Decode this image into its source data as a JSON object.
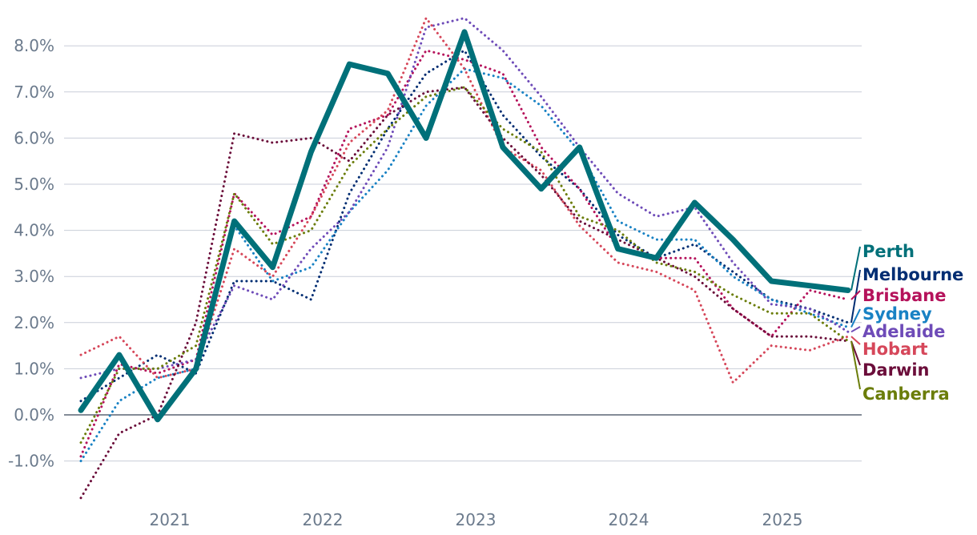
{
  "chart_data": {
    "type": "line",
    "title": "",
    "xlabel": "",
    "ylabel": "",
    "ylim": [
      -1.8,
      8.6
    ],
    "y_ticks": [
      -1,
      0,
      1,
      2,
      3,
      4,
      5,
      6,
      7,
      8
    ],
    "y_tick_labels": [
      "-1.0%",
      "0.0%",
      "1.0%",
      "2.0%",
      "3.0%",
      "4.0%",
      "5.0%",
      "6.0%",
      "7.0%",
      "8.0%"
    ],
    "x_ticks": [
      "2021",
      "2022",
      "2023",
      "2024",
      "2025"
    ],
    "x": [
      "Jun 2020",
      "Sep 2020",
      "Dec 2020",
      "Mar 2021",
      "Jun 2021",
      "Sep 2021",
      "Dec 2021",
      "Mar 2022",
      "Jun 2022",
      "Sep 2022",
      "Dec 2022",
      "Mar 2023",
      "Jun 2023",
      "Sep 2023",
      "Dec 2023",
      "Mar 2024",
      "Jun 2024",
      "Sep 2024",
      "Dec 2024",
      "Mar 2025",
      "Jun 2025"
    ],
    "grid": true,
    "legend": "right, labels at line ends",
    "series": [
      {
        "name": "Perth",
        "color": "#007079",
        "style": "solid",
        "values": [
          0.1,
          1.3,
          -0.1,
          1.0,
          4.2,
          3.2,
          5.7,
          7.6,
          7.4,
          6.0,
          8.3,
          5.8,
          4.9,
          5.8,
          3.6,
          3.4,
          4.6,
          3.8,
          2.9,
          2.8,
          2.7
        ]
      },
      {
        "name": "Melbourne",
        "color": "#002d72",
        "style": "dotted",
        "values": [
          0.3,
          0.8,
          1.3,
          0.9,
          2.9,
          2.9,
          2.5,
          4.8,
          6.2,
          7.4,
          7.9,
          6.5,
          5.6,
          4.9,
          3.9,
          3.4,
          3.7,
          3.1,
          2.5,
          2.3,
          2.0
        ]
      },
      {
        "name": "Brisbane",
        "color": "#b5125b",
        "style": "dotted",
        "values": [
          -0.9,
          1.1,
          0.9,
          1.2,
          4.8,
          3.9,
          4.3,
          6.2,
          6.5,
          7.9,
          7.7,
          7.4,
          5.8,
          4.9,
          3.6,
          3.4,
          3.4,
          2.3,
          1.7,
          2.7,
          2.5
        ]
      },
      {
        "name": "Sydney",
        "color": "#1982c4",
        "style": "dotted",
        "values": [
          -1.0,
          0.3,
          0.8,
          1.0,
          4.1,
          2.9,
          3.2,
          4.4,
          5.3,
          6.7,
          7.5,
          7.3,
          6.7,
          5.7,
          4.2,
          3.8,
          3.8,
          3.0,
          2.5,
          2.2,
          1.9
        ]
      },
      {
        "name": "Adelaide",
        "color": "#6e4bb8",
        "style": "dotted",
        "values": [
          0.8,
          1.0,
          1.0,
          1.2,
          2.8,
          2.5,
          3.6,
          4.4,
          5.8,
          8.4,
          8.6,
          7.9,
          6.9,
          5.8,
          4.8,
          4.3,
          4.5,
          3.3,
          2.4,
          2.3,
          1.8
        ]
      },
      {
        "name": "Hobart",
        "color": "#d6475a",
        "style": "dotted",
        "values": [
          1.3,
          1.7,
          0.8,
          1.0,
          3.6,
          3.0,
          4.3,
          5.9,
          6.6,
          8.6,
          7.5,
          5.8,
          5.3,
          4.1,
          3.3,
          3.1,
          2.7,
          0.7,
          1.5,
          1.4,
          1.7
        ]
      },
      {
        "name": "Darwin",
        "color": "#6b0d3a",
        "style": "dotted",
        "values": [
          -1.8,
          -0.4,
          0.0,
          2.0,
          6.1,
          5.9,
          6.0,
          5.5,
          6.5,
          7.0,
          7.1,
          6.0,
          5.2,
          4.2,
          3.8,
          3.4,
          3.0,
          2.3,
          1.7,
          1.7,
          1.6
        ]
      },
      {
        "name": "Canberra",
        "color": "#6b7d0a",
        "style": "dotted",
        "values": [
          -0.6,
          1.0,
          1.0,
          1.5,
          4.8,
          3.7,
          4.0,
          5.4,
          6.2,
          6.9,
          7.1,
          6.2,
          5.7,
          4.3,
          4.0,
          3.3,
          3.1,
          2.6,
          2.2,
          2.2,
          1.6
        ]
      }
    ]
  }
}
